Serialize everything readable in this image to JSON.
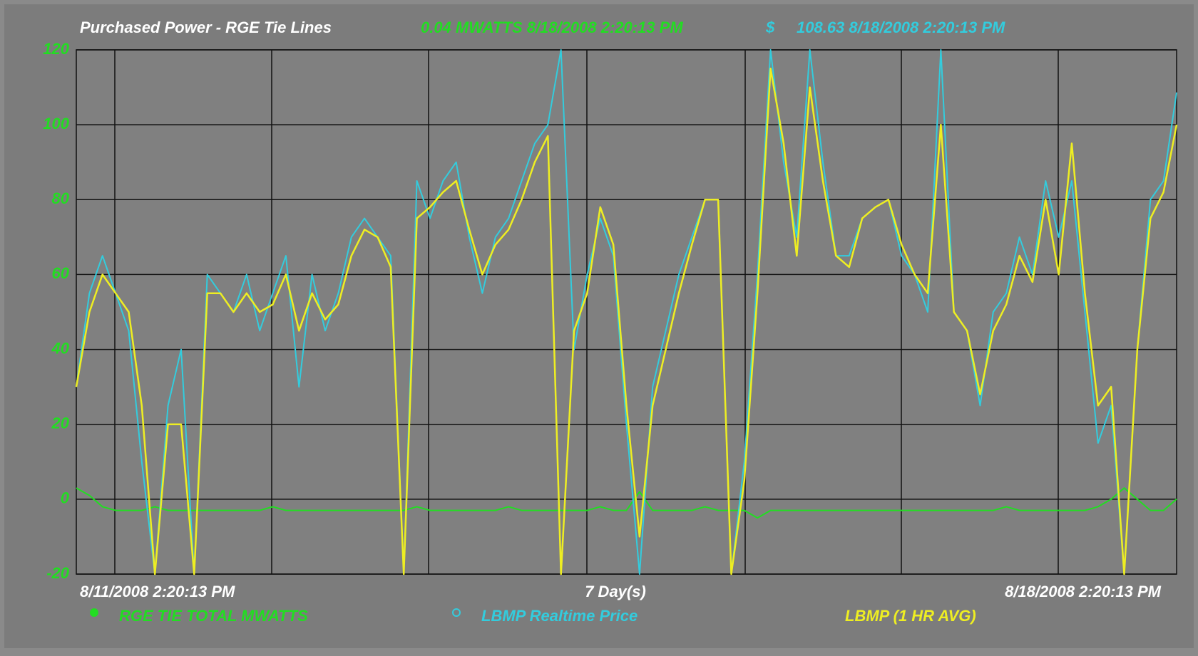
{
  "chart_data": {
    "type": "line",
    "title": "Purchased Power - RGE Tie Lines",
    "status_mw": "0.04 MWATTS 8/18/2008 2:20:13 PM",
    "status_currency": "$",
    "status_price": "108.63 8/18/2008 2:20:13 PM",
    "x_label": "7 Day(s)",
    "categories": [
      "8/11/2008 2:20:13 PM",
      null,
      null,
      null,
      null,
      null,
      null,
      null,
      null,
      null,
      null,
      null,
      null,
      null,
      null,
      null,
      null,
      null,
      null,
      null,
      null,
      null,
      null,
      null,
      null,
      null,
      null,
      null,
      null,
      null,
      null,
      null,
      null,
      null,
      null,
      null,
      null,
      null,
      null,
      null,
      null,
      null,
      null,
      null,
      null,
      null,
      null,
      null,
      null,
      null,
      null,
      null,
      null,
      null,
      null,
      null,
      null,
      null,
      null,
      null,
      null,
      null,
      null,
      null,
      null,
      null,
      null,
      null,
      null,
      null,
      null,
      null,
      null,
      null,
      null,
      null,
      null,
      null,
      null,
      null,
      null,
      null,
      null,
      null,
      "8/18/2008 2:20:13 PM"
    ],
    "ylim": [
      -20,
      120
    ],
    "yticks": [
      -20,
      0,
      20,
      40,
      60,
      80,
      100,
      120
    ],
    "grid": true,
    "series": [
      {
        "name": "RGE TIE TOTAL MWATTS",
        "color": "#22dd22",
        "marker": "dot",
        "values": [
          3,
          1,
          -2,
          -3,
          -3,
          -3,
          -2,
          -3,
          -3,
          -3,
          -3,
          -3,
          -3,
          -3,
          -3,
          -2,
          -3,
          -3,
          -3,
          -3,
          -3,
          -3,
          -3,
          -3,
          -3,
          -3,
          -2,
          -3,
          -3,
          -3,
          -3,
          -3,
          -3,
          -2,
          -3,
          -3,
          -3,
          -3,
          -3,
          -3,
          -2,
          -3,
          -3,
          2,
          -3,
          -3,
          -3,
          -3,
          -2,
          -3,
          -3,
          -3,
          -5,
          -3,
          -3,
          -3,
          -3,
          -3,
          -3,
          -3,
          -3,
          -3,
          -3,
          -3,
          -3,
          -3,
          -3,
          -3,
          -3,
          -3,
          -3,
          -2,
          -3,
          -3,
          -3,
          -3,
          -3,
          -3,
          -2,
          0,
          3,
          0,
          -3,
          -3,
          0.04
        ]
      },
      {
        "name": "LBMP Realtime Price",
        "color": "#33ccdd",
        "marker": "ring",
        "values": [
          30,
          55,
          65,
          55,
          45,
          10,
          -20,
          25,
          40,
          -20,
          60,
          55,
          50,
          60,
          45,
          55,
          65,
          30,
          60,
          45,
          55,
          70,
          75,
          70,
          65,
          -20,
          85,
          75,
          85,
          90,
          70,
          55,
          70,
          75,
          85,
          95,
          100,
          120,
          40,
          60,
          75,
          65,
          20,
          -20,
          30,
          45,
          60,
          70,
          80,
          80,
          -20,
          10,
          60,
          120,
          90,
          70,
          120,
          90,
          65,
          65,
          75,
          78,
          80,
          65,
          60,
          50,
          120,
          50,
          45,
          25,
          50,
          55,
          70,
          60,
          85,
          70,
          85,
          50,
          15,
          25,
          -20,
          40,
          80,
          85,
          108.63
        ]
      },
      {
        "name": "LBMP (1 HR AVG)",
        "color": "#eeee22",
        "values": [
          30,
          50,
          60,
          55,
          50,
          25,
          -20,
          20,
          20,
          -20,
          55,
          55,
          50,
          55,
          50,
          52,
          60,
          45,
          55,
          48,
          52,
          65,
          72,
          70,
          62,
          -20,
          75,
          78,
          82,
          85,
          72,
          60,
          68,
          72,
          80,
          90,
          97,
          -20,
          45,
          55,
          78,
          68,
          25,
          -10,
          25,
          40,
          55,
          68,
          80,
          80,
          -20,
          5,
          55,
          115,
          95,
          65,
          110,
          85,
          65,
          62,
          75,
          78,
          80,
          68,
          60,
          55,
          100,
          50,
          45,
          28,
          45,
          52,
          65,
          58,
          80,
          60,
          95,
          55,
          25,
          30,
          -20,
          40,
          75,
          82,
          100
        ]
      }
    ]
  }
}
